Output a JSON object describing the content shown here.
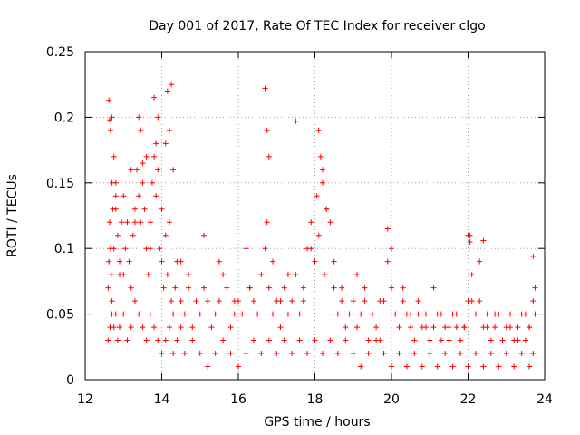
{
  "chart_data": {
    "type": "scatter",
    "title": "Day 001 of 2017, Rate Of TEC Index for receiver clgo",
    "xlabel": "GPS time / hours",
    "ylabel": "ROTI / TECUs",
    "xlim": [
      12,
      24
    ],
    "ylim": [
      0,
      0.25
    ],
    "x_ticks": [
      12,
      14,
      16,
      18,
      20,
      22,
      24
    ],
    "x_tick_labels": [
      "12",
      "14",
      "16",
      "18",
      "20",
      "22",
      "24"
    ],
    "y_ticks": [
      0,
      0.05,
      0.1,
      0.15,
      0.2,
      0.25
    ],
    "y_tick_labels": [
      "0",
      "0.05",
      "0.1",
      "0.15",
      "0.2",
      "0.25"
    ],
    "grid": true,
    "marker": "+",
    "series": [
      {
        "name": "ROTI",
        "color": "#ff0000",
        "x": [
          12.6,
          12.62,
          12.64,
          12.66,
          12.68,
          12.7,
          12.72,
          12.75,
          12.8,
          12.85,
          12.9,
          12.95,
          13.0,
          13.05,
          13.1,
          13.15,
          13.2,
          13.25,
          13.3,
          13.35,
          13.4,
          13.45,
          13.5,
          13.55,
          13.6,
          13.65,
          13.7,
          13.75,
          13.8,
          13.85,
          13.9,
          13.95,
          14.0,
          14.05,
          14.1,
          14.15,
          14.2,
          14.25,
          14.3,
          14.35,
          14.4,
          14.5,
          14.6,
          14.7,
          14.8,
          14.9,
          15.0,
          15.1,
          15.2,
          15.3,
          15.4,
          15.5,
          15.6,
          15.7,
          15.8,
          15.9,
          16.0,
          16.1,
          16.2,
          16.3,
          16.4,
          16.5,
          16.6,
          16.7,
          16.75,
          16.8,
          16.9,
          17.0,
          17.1,
          17.2,
          17.3,
          17.4,
          17.5,
          17.6,
          17.7,
          17.8,
          17.9,
          18.0,
          18.05,
          18.1,
          18.2,
          18.25,
          18.3,
          18.4,
          18.5,
          18.6,
          18.7,
          18.8,
          18.9,
          19.0,
          19.1,
          19.2,
          19.3,
          19.4,
          19.5,
          19.6,
          19.7,
          19.8,
          19.9,
          20.0,
          20.1,
          20.2,
          20.3,
          20.4,
          20.5,
          20.6,
          20.7,
          20.8,
          20.9,
          21.0,
          21.1,
          21.2,
          21.3,
          21.4,
          21.5,
          21.6,
          21.7,
          21.8,
          21.9,
          22.0,
          22.05,
          22.1,
          22.2,
          22.3,
          22.4,
          22.5,
          22.6,
          22.7,
          22.8,
          22.9,
          23.0,
          23.1,
          23.2,
          23.3,
          23.4,
          23.5,
          23.6,
          23.7,
          23.75,
          12.6,
          12.65,
          12.7,
          12.75,
          12.8,
          12.85,
          12.9,
          13.0,
          13.1,
          13.2,
          13.3,
          13.4,
          13.5,
          13.6,
          13.7,
          13.8,
          13.9,
          14.0,
          14.1,
          14.2,
          14.3,
          14.4,
          14.5,
          14.6,
          14.8,
          15.0,
          15.2,
          15.4,
          15.6,
          15.8,
          16.0,
          16.2,
          16.4,
          16.6,
          16.8,
          17.0,
          17.2,
          17.4,
          17.6,
          17.8,
          18.0,
          18.2,
          18.4,
          18.6,
          18.8,
          19.0,
          19.2,
          19.4,
          19.6,
          19.8,
          20.0,
          20.2,
          20.4,
          20.6,
          20.8,
          21.0,
          21.2,
          21.4,
          21.6,
          21.8,
          22.0,
          22.2,
          22.4,
          22.6,
          22.8,
          23.0,
          23.2,
          23.4,
          23.6,
          23.7,
          12.62,
          12.64,
          12.66,
          12.7,
          12.75,
          12.8,
          13.4,
          13.45,
          13.5,
          13.8,
          13.85,
          13.9,
          14.1,
          14.15,
          14.2,
          14.25,
          16.7,
          16.75,
          16.8,
          17.5,
          18.1,
          18.15,
          18.2,
          19.9,
          20.0,
          22.0,
          22.05,
          22.4,
          23.7,
          12.7,
          12.8,
          12.9,
          13.0,
          13.2,
          13.3,
          13.6,
          13.7,
          14.0,
          14.3,
          14.5,
          14.7,
          15.1,
          15.5,
          15.9,
          16.3,
          16.9,
          17.1,
          17.3,
          17.7,
          17.9,
          18.3,
          18.5,
          18.7,
          19.1,
          19.3,
          19.5,
          19.7,
          20.3,
          20.5,
          20.7,
          20.9,
          21.1,
          21.3,
          21.5,
          21.7,
          21.9,
          22.1,
          22.3,
          22.5,
          22.7,
          22.9,
          23.1,
          23.3,
          23.5,
          23.6,
          23.75
        ],
        "y": [
          0.07,
          0.09,
          0.12,
          0.1,
          0.08,
          0.06,
          0.13,
          0.1,
          0.14,
          0.11,
          0.09,
          0.12,
          0.08,
          0.1,
          0.12,
          0.09,
          0.07,
          0.11,
          0.13,
          0.16,
          0.14,
          0.12,
          0.15,
          0.13,
          0.1,
          0.08,
          0.12,
          0.15,
          0.17,
          0.14,
          0.16,
          0.1,
          0.09,
          0.07,
          0.11,
          0.08,
          0.12,
          0.06,
          0.05,
          0.07,
          0.09,
          0.06,
          0.05,
          0.08,
          0.04,
          0.06,
          0.05,
          0.07,
          0.06,
          0.04,
          0.05,
          0.06,
          0.08,
          0.07,
          0.04,
          0.05,
          0.06,
          0.05,
          0.1,
          0.07,
          0.06,
          0.05,
          0.08,
          0.1,
          0.12,
          0.07,
          0.05,
          0.06,
          0.04,
          0.07,
          0.05,
          0.06,
          0.08,
          0.05,
          0.07,
          0.1,
          0.12,
          0.09,
          0.14,
          0.11,
          0.15,
          0.08,
          0.13,
          0.12,
          0.07,
          0.05,
          0.06,
          0.04,
          0.05,
          0.06,
          0.04,
          0.05,
          0.06,
          0.03,
          0.05,
          0.04,
          0.03,
          0.06,
          0.09,
          0.07,
          0.05,
          0.04,
          0.06,
          0.05,
          0.04,
          0.03,
          0.05,
          0.04,
          0.05,
          0.03,
          0.04,
          0.05,
          0.03,
          0.04,
          0.03,
          0.05,
          0.04,
          0.03,
          0.04,
          0.06,
          0.11,
          0.08,
          0.05,
          0.06,
          0.04,
          0.05,
          0.03,
          0.04,
          0.05,
          0.03,
          0.04,
          0.05,
          0.03,
          0.04,
          0.05,
          0.03,
          0.04,
          0.06,
          0.07,
          0.03,
          0.04,
          0.05,
          0.04,
          0.05,
          0.03,
          0.04,
          0.05,
          0.03,
          0.04,
          0.06,
          0.05,
          0.04,
          0.03,
          0.05,
          0.04,
          0.03,
          0.02,
          0.03,
          0.04,
          0.02,
          0.03,
          0.04,
          0.02,
          0.03,
          0.02,
          0.01,
          0.02,
          0.03,
          0.02,
          0.01,
          0.02,
          0.03,
          0.02,
          0.03,
          0.02,
          0.03,
          0.02,
          0.03,
          0.02,
          0.03,
          0.02,
          0.03,
          0.02,
          0.03,
          0.02,
          0.01,
          0.02,
          0.03,
          0.02,
          0.01,
          0.02,
          0.01,
          0.02,
          0.01,
          0.02,
          0.01,
          0.02,
          0.01,
          0.02,
          0.01,
          0.02,
          0.01,
          0.02,
          0.01,
          0.02,
          0.01,
          0.02,
          0.01,
          0.02,
          0.213,
          0.198,
          0.19,
          0.2,
          0.17,
          0.15,
          0.2,
          0.19,
          0.165,
          0.215,
          0.18,
          0.2,
          0.18,
          0.22,
          0.19,
          0.225,
          0.222,
          0.19,
          0.17,
          0.197,
          0.19,
          0.17,
          0.16,
          0.115,
          0.1,
          0.11,
          0.105,
          0.106,
          0.094,
          0.15,
          0.13,
          0.08,
          0.14,
          0.16,
          0.12,
          0.17,
          0.1,
          0.13,
          0.16,
          0.09,
          0.07,
          0.11,
          0.09,
          0.06,
          0.07,
          0.09,
          0.06,
          0.08,
          0.06,
          0.1,
          0.13,
          0.09,
          0.07,
          0.08,
          0.07,
          0.05,
          0.06,
          0.07,
          0.05,
          0.06,
          0.04,
          0.07,
          0.05,
          0.04,
          0.05,
          0.04,
          0.06,
          0.09,
          0.04,
          0.05,
          0.03,
          0.04,
          0.03,
          0.05,
          0.04,
          0.05
        ]
      }
    ]
  }
}
